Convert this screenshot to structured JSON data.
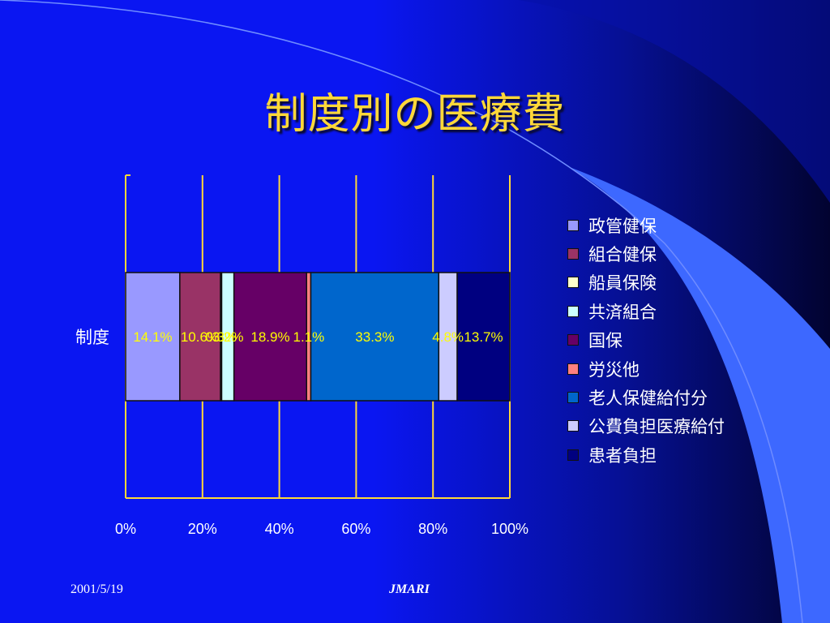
{
  "slide": {
    "title": "制度別の医療費",
    "footer_date": "2001/5/19",
    "footer_org": "JMARI"
  },
  "colors": {
    "background": "#0a16f2",
    "title": "#ffd838",
    "gridline": "#ffd838",
    "data_label": "#ffff00",
    "legend_text": "#ffffff"
  },
  "chart_data": {
    "type": "bar",
    "orientation": "horizontal",
    "stacked": "percent",
    "categories": [
      "制度"
    ],
    "xlim": [
      0,
      100
    ],
    "x_ticks": [
      "0%",
      "20%",
      "40%",
      "60%",
      "80%",
      "100%"
    ],
    "grid": true,
    "legend_position": "right",
    "series": [
      {
        "name": "政管健保",
        "value": 14.1,
        "label": "14.1%",
        "color": "#9999ff"
      },
      {
        "name": "組合健保",
        "value": 10.6,
        "label": "10.6%",
        "color": "#993366"
      },
      {
        "name": "船員保険",
        "value": 0.3,
        "label": "0.3%",
        "color": "#ffffcc"
      },
      {
        "name": "共済組合",
        "value": 3.2,
        "label": "3.2%",
        "color": "#ccffff"
      },
      {
        "name": "国保",
        "value": 18.9,
        "label": "18.9%",
        "color": "#660066"
      },
      {
        "name": "労災他",
        "value": 1.1,
        "label": "1.1%",
        "color": "#ff8080"
      },
      {
        "name": "老人保健給付分",
        "value": 33.3,
        "label": "33.3%",
        "color": "#0066cc"
      },
      {
        "name": "公費負担医療給付",
        "value": 4.8,
        "label": "4.8%",
        "color": "#ccccff"
      },
      {
        "name": "患者負担",
        "value": 13.7,
        "label": "13.7%",
        "color": "#000080"
      }
    ]
  }
}
